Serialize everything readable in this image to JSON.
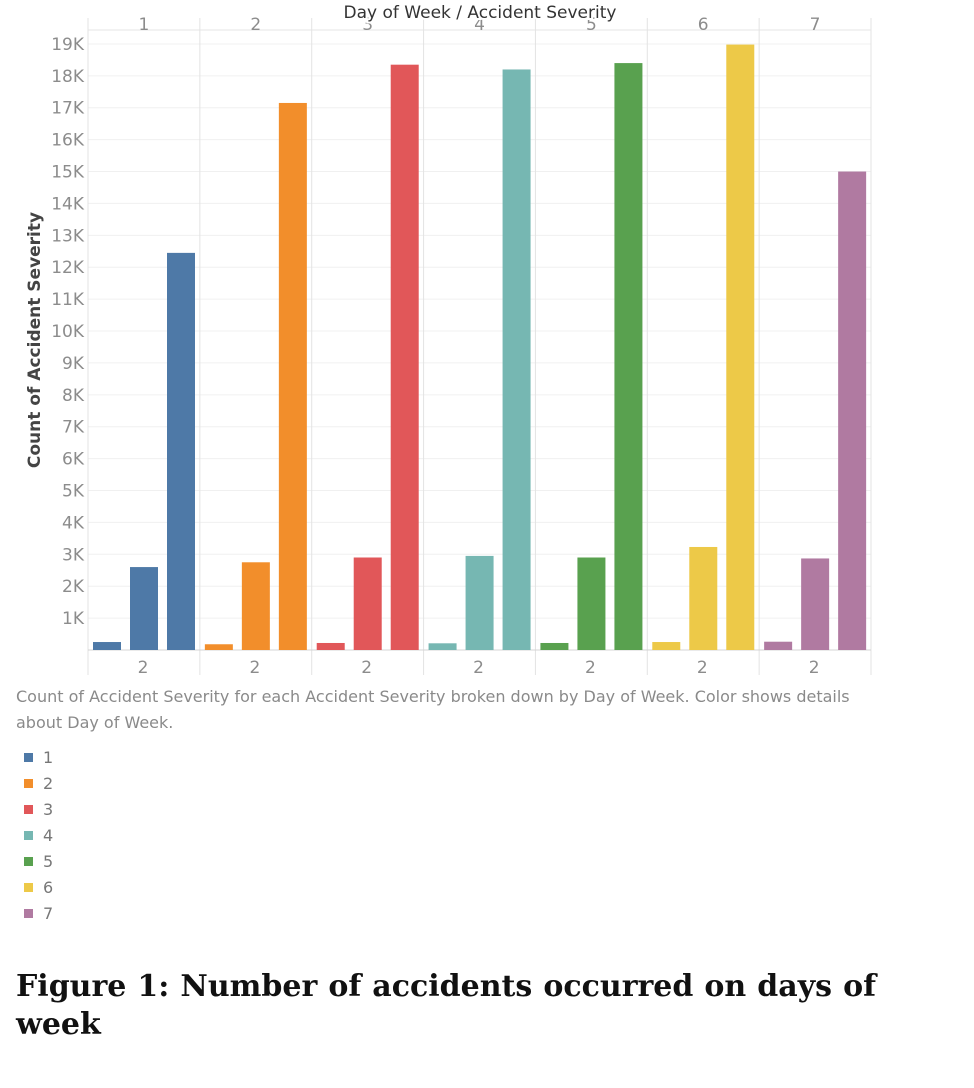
{
  "chart_data": {
    "type": "bar",
    "title": "Day of Week / Accident Severity",
    "ylabel": "Count of Accident Severity",
    "xlabel": "",
    "ylim": [
      0,
      19500
    ],
    "y_ticks": [
      1000,
      2000,
      3000,
      4000,
      5000,
      6000,
      7000,
      8000,
      9000,
      10000,
      11000,
      12000,
      13000,
      14000,
      15000,
      16000,
      17000,
      18000,
      19000
    ],
    "y_tick_labels": [
      "1K",
      "2K",
      "3K",
      "4K",
      "5K",
      "6K",
      "7K",
      "8K",
      "9K",
      "10K",
      "11K",
      "12K",
      "13K",
      "14K",
      "15K",
      "16K",
      "17K",
      "18K",
      "19K"
    ],
    "panels": [
      "1",
      "2",
      "3",
      "4",
      "5",
      "6",
      "7"
    ],
    "panel_bottom_label": "2",
    "grid": true,
    "series": [
      {
        "name": "1",
        "color": "#4e79a7",
        "values": [
          250,
          2600,
          12450
        ]
      },
      {
        "name": "2",
        "color": "#f28e2b",
        "values": [
          180,
          2750,
          17150
        ]
      },
      {
        "name": "3",
        "color": "#e15759",
        "values": [
          220,
          2900,
          18350
        ]
      },
      {
        "name": "4",
        "color": "#76b7b2",
        "values": [
          210,
          2950,
          18200
        ]
      },
      {
        "name": "5",
        "color": "#59a14f",
        "values": [
          220,
          2900,
          18400
        ]
      },
      {
        "name": "6",
        "color": "#edc948",
        "values": [
          250,
          3230,
          18980
        ]
      },
      {
        "name": "7",
        "color": "#b07aa1",
        "values": [
          260,
          2870,
          15000
        ]
      }
    ]
  },
  "caption": "Count of Accident Severity for each Accident Severity broken down by Day of Week.  Color shows details about Day of Week.",
  "legend": [
    {
      "label": "1",
      "color": "#4e79a7"
    },
    {
      "label": "2",
      "color": "#f28e2b"
    },
    {
      "label": "3",
      "color": "#e15759"
    },
    {
      "label": "4",
      "color": "#76b7b2"
    },
    {
      "label": "5",
      "color": "#59a14f"
    },
    {
      "label": "6",
      "color": "#edc948"
    },
    {
      "label": "7",
      "color": "#b07aa1"
    }
  ],
  "figure_caption": "Figure 1:  Number of accidents occurred on days of week"
}
